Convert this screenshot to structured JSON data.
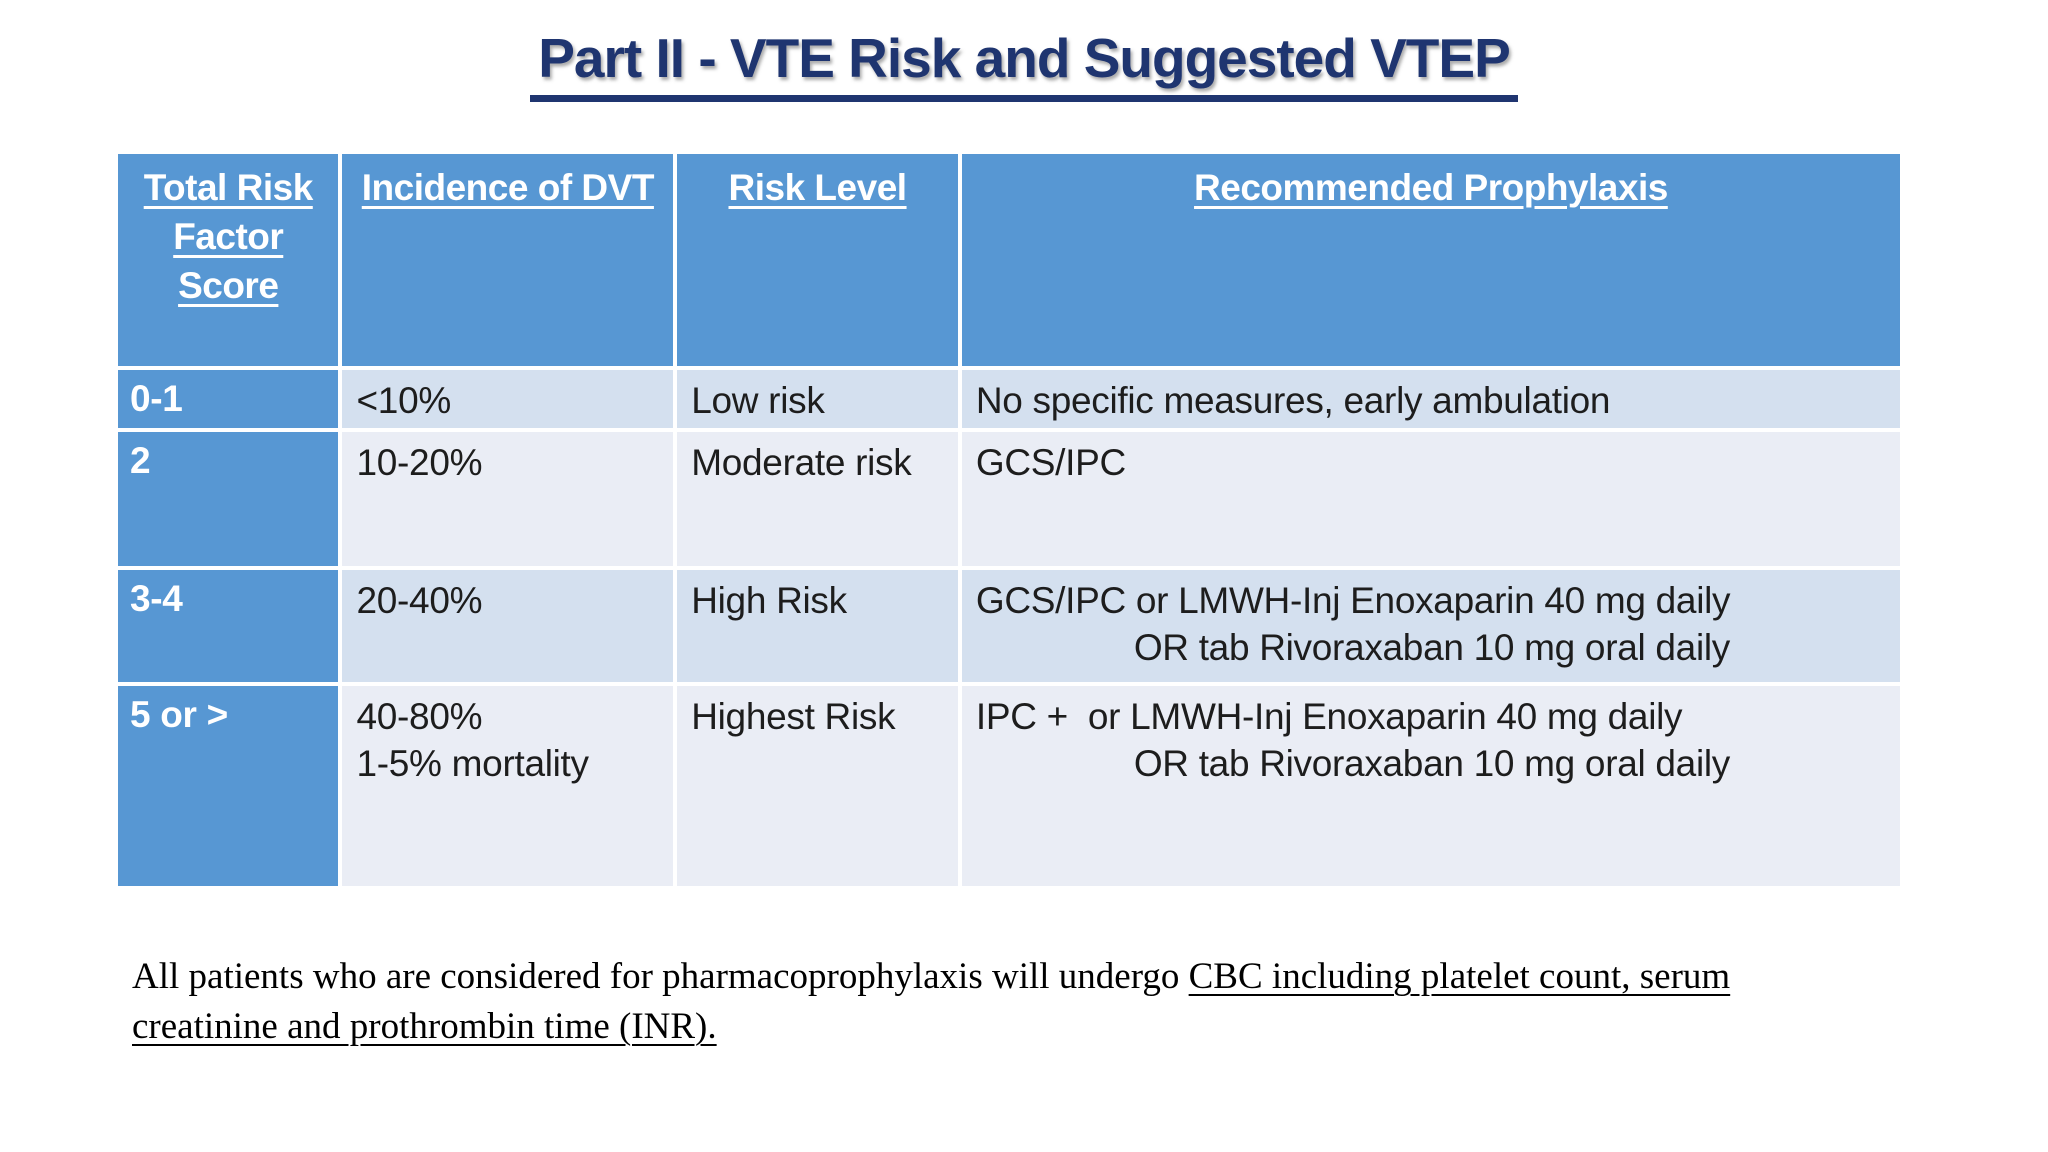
{
  "title": "Part II - VTE Risk and Suggested VTEP",
  "colors": {
    "title_navy": "#1F3570",
    "header_blue": "#5797D3",
    "row_band_dark": "#D4E0EF",
    "row_band_light": "#EAEDF5",
    "header_text": "#FFFFFF",
    "body_text": "#1D1D1D"
  },
  "table": {
    "header": {
      "col1_lines": [
        "Total Risk",
        "Factor",
        "Score"
      ],
      "col2": "Incidence of DVT",
      "col3": "Risk Level",
      "col4": "Recommended Prophylaxis"
    },
    "rows": [
      {
        "score": "0-1",
        "incidence": [
          "<10%"
        ],
        "risk_level": "Low risk",
        "prophylaxis": [
          "No specific measures, early ambulation"
        ]
      },
      {
        "score": "2",
        "incidence": [
          "10-20%"
        ],
        "risk_level": "Moderate risk",
        "prophylaxis": [
          "GCS/IPC"
        ]
      },
      {
        "score": "3-4",
        "incidence": [
          "20-40%"
        ],
        "risk_level": "High Risk",
        "prophylaxis": [
          "GCS/IPC or LMWH-Inj Enoxaparin 40 mg daily",
          "OR tab Rivoraxaban 10 mg oral daily"
        ]
      },
      {
        "score": "5 or >",
        "incidence": [
          "40-80%",
          "1-5% mortality"
        ],
        "risk_level": "Highest Risk",
        "prophylaxis": [
          "IPC +  or LMWH-Inj Enoxaparin 40 mg daily",
          "OR tab Rivoraxaban 10 mg oral daily"
        ]
      }
    ]
  },
  "note": {
    "prefix": "All patients who are considered for pharmacoprophylaxis will undergo ",
    "underlined_line1": "CBC including platelet count, serum",
    "underlined_line2": "creatinine and prothrombin time (INR)."
  }
}
